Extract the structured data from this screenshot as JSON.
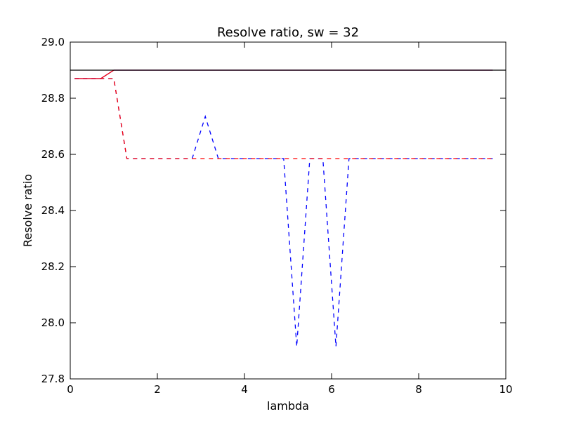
{
  "chart_data": {
    "type": "line",
    "title": "Resolve ratio, sw = 32",
    "xlabel": "lambda",
    "ylabel": "Resolve ratio",
    "xlim": [
      0,
      10
    ],
    "ylim": [
      27.8,
      29.0
    ],
    "xticks": [
      0,
      2,
      4,
      6,
      8,
      10
    ],
    "yticks": [
      27.8,
      28.0,
      28.2,
      28.4,
      28.6,
      28.8,
      29.0
    ],
    "xtick_labels": [
      "0",
      "2",
      "4",
      "6",
      "8",
      "10"
    ],
    "ytick_labels": [
      "27.8",
      "28.0",
      "28.2",
      "28.4",
      "28.6",
      "28.8",
      "29.0"
    ],
    "grid": false,
    "legend": "none",
    "series": [
      {
        "color": "#0000ff",
        "style": "dashed",
        "x": [
          0.1,
          0.7,
          1.0,
          1.3,
          2.8,
          3.1,
          3.4,
          4.9,
          5.2,
          5.5,
          5.8,
          6.1,
          6.4,
          9.7
        ],
        "y": [
          28.87,
          28.87,
          28.87,
          28.585,
          28.585,
          28.735,
          28.585,
          28.585,
          27.915,
          28.585,
          28.585,
          27.915,
          28.585,
          28.585
        ]
      },
      {
        "color": "#ff0000",
        "style": "dashed",
        "x": [
          0.1,
          0.7,
          1.0,
          1.3,
          9.7
        ],
        "y": [
          28.87,
          28.87,
          28.87,
          28.585,
          28.585
        ]
      },
      {
        "color": "#0000ff",
        "style": "solid",
        "x": [
          0.1,
          0.7,
          1.0,
          9.7
        ],
        "y": [
          28.87,
          28.87,
          28.9,
          28.9
        ]
      },
      {
        "color": "#ff0000",
        "style": "solid",
        "x": [
          0.1,
          0.7,
          1.0,
          9.7
        ],
        "y": [
          28.87,
          28.87,
          28.9,
          28.9
        ]
      },
      {
        "color": "#000000",
        "style": "solid",
        "x": [
          0,
          10
        ],
        "y": [
          28.9,
          28.9
        ]
      }
    ]
  }
}
